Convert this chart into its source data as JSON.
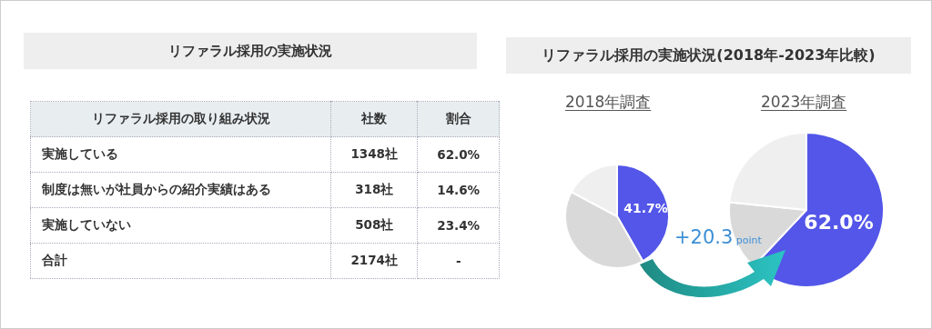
{
  "chart_data": [
    {
      "type": "other",
      "title": "リファラル採用の実施状況",
      "ylabel": "リファラル採用の取り組み状況",
      "categories": [
        "実施している",
        "制度は無いが社員からの紹介実績はある",
        "実施していない",
        "合計"
      ],
      "series": [
        {
          "name": "社数",
          "values": [
            1348,
            318,
            508,
            2174
          ],
          "value_labels": [
            "1348社",
            "318社",
            "508社",
            "2174社"
          ]
        },
        {
          "name": "割合",
          "values": [
            62.0,
            14.6,
            23.4,
            null
          ],
          "value_labels": [
            "62.0%",
            "14.6%",
            "23.4%",
            "-"
          ]
        }
      ]
    },
    {
      "type": "other",
      "title": "リファラル採用の実施状況(2018年-2023年比較)"
    },
    {
      "type": "pie",
      "title": "2018年調査",
      "categories": [
        null,
        null,
        null
      ],
      "values": [
        41.7,
        41.1,
        17.2
      ],
      "colors": [
        "#5356e8",
        "#d9d9d9",
        "#efefef"
      ],
      "value_labels": [
        "41.7%",
        null,
        null
      ]
    },
    {
      "type": "pie",
      "title": "2023年調査",
      "categories": [
        null,
        null,
        null
      ],
      "values": [
        62.0,
        14.6,
        23.4
      ],
      "colors": [
        "#5356e8",
        "#d9d9d9",
        "#efefef"
      ],
      "value_labels": [
        "62.0%",
        null,
        null
      ],
      "annotations": [
        "+20.3 point"
      ]
    }
  ]
}
